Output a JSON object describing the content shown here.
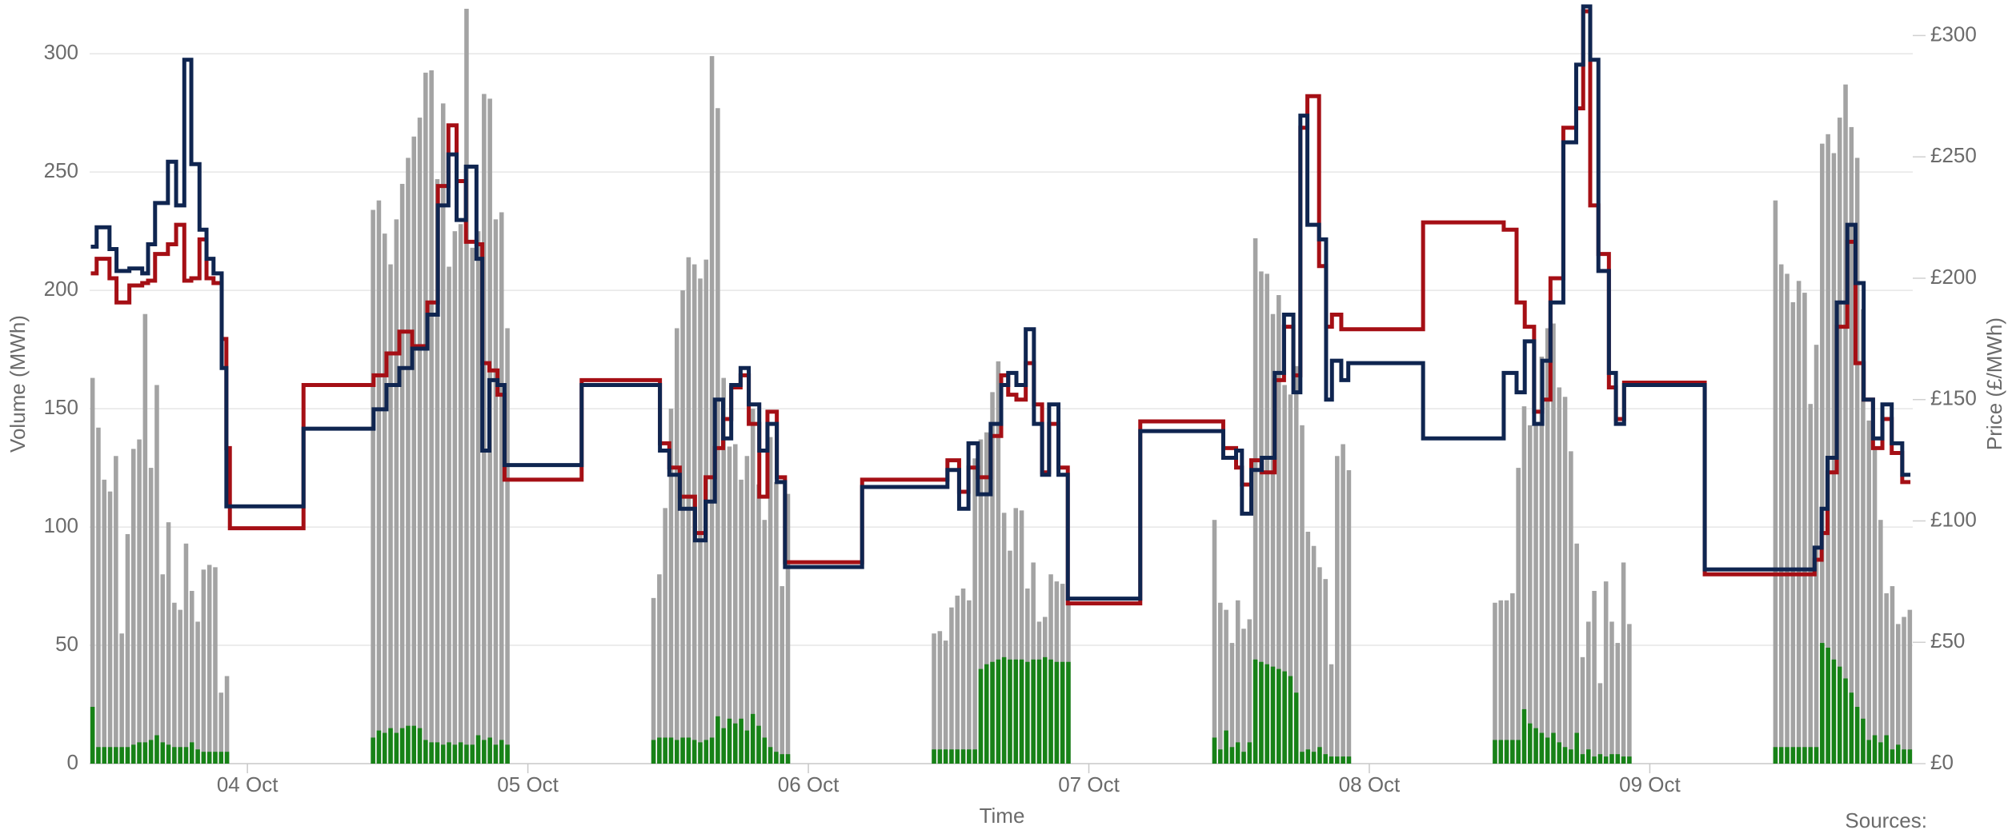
{
  "chart_data": {
    "type": "bar-step",
    "ylabel": "Volume (MWh)",
    "y2label": "Price (£/MWh)",
    "xlabel": "Time",
    "source": "Sources:",
    "ylim": [
      0,
      320
    ],
    "yticks": [
      0,
      50,
      100,
      150,
      200,
      250,
      300
    ],
    "y2lim": [
      0,
      312
    ],
    "y2ticks": [
      {
        "value": 0,
        "label": "£0"
      },
      {
        "value": 50,
        "label": "£50"
      },
      {
        "value": 100,
        "label": "£100"
      },
      {
        "value": 150,
        "label": "£150"
      },
      {
        "value": 200,
        "label": "£200"
      },
      {
        "value": 250,
        "label": "£250"
      },
      {
        "value": 300,
        "label": "£300"
      }
    ],
    "xlim": [
      -13.5,
      142.5
    ],
    "xticks": [
      {
        "value": 0,
        "label": "04 Oct"
      },
      {
        "value": 24,
        "label": "05 Oct"
      },
      {
        "value": 48,
        "label": "06 Oct"
      },
      {
        "value": 72,
        "label": "07 Oct"
      },
      {
        "value": 96,
        "label": "08 Oct"
      },
      {
        "value": 120,
        "label": "09 Oct"
      }
    ],
    "grid": true,
    "x": [
      -13.25,
      -12.75,
      -12.25,
      -11.75,
      -11.25,
      -10.75,
      -10.25,
      -9.75,
      -9.25,
      -8.75,
      -8.25,
      -7.75,
      -7.25,
      -6.75,
      -6.25,
      -5.75,
      -5.25,
      -4.75,
      -4.25,
      -3.75,
      -3.25,
      -2.75,
      -2.25,
      -1.75,
      10.75,
      11.25,
      11.75,
      12.25,
      12.75,
      13.25,
      13.75,
      14.25,
      14.75,
      15.25,
      15.75,
      16.25,
      16.75,
      17.25,
      17.75,
      18.25,
      18.75,
      19.25,
      19.75,
      20.25,
      20.75,
      21.25,
      21.75,
      22.25,
      34.75,
      35.25,
      35.75,
      36.25,
      36.75,
      37.25,
      37.75,
      38.25,
      38.75,
      39.25,
      39.75,
      40.25,
      40.75,
      41.25,
      41.75,
      42.25,
      42.75,
      43.25,
      43.75,
      44.25,
      44.75,
      45.25,
      45.75,
      46.25,
      58.75,
      59.25,
      59.75,
      60.25,
      60.75,
      61.25,
      61.75,
      62.25,
      62.75,
      63.25,
      63.75,
      64.25,
      64.75,
      65.25,
      65.75,
      66.25,
      66.75,
      67.25,
      67.75,
      68.25,
      68.75,
      69.25,
      69.75,
      70.25,
      82.75,
      83.25,
      83.75,
      84.25,
      84.75,
      85.25,
      85.75,
      86.25,
      86.75,
      87.25,
      87.75,
      88.25,
      88.75,
      89.25,
      89.75,
      90.25,
      90.75,
      91.25,
      91.75,
      92.25,
      92.75,
      93.25,
      93.75,
      94.25,
      106.75,
      107.25,
      107.75,
      108.25,
      108.75,
      109.25,
      109.75,
      110.25,
      110.75,
      111.25,
      111.75,
      112.25,
      112.75,
      113.25,
      113.75,
      114.25,
      114.75,
      115.25,
      115.75,
      116.25,
      116.75,
      117.25,
      117.75,
      118.25,
      130.75,
      131.25,
      131.75,
      132.25,
      132.75,
      133.25,
      133.75,
      134.25,
      134.75,
      135.25,
      135.75,
      136.25,
      136.75,
      137.25,
      137.75,
      138.25,
      138.75,
      139.25,
      139.75,
      140.25,
      140.75,
      141.25,
      141.75,
      142.25
    ],
    "series": [
      {
        "type": "bar",
        "color": "#a3a3a3",
        "values": [
          163,
          142,
          120,
          115,
          130,
          55,
          97,
          133,
          137,
          190,
          125,
          160,
          80,
          102,
          68,
          65,
          93,
          73,
          60,
          82,
          84,
          83,
          30,
          37,
          234,
          238,
          224,
          211,
          230,
          245,
          256,
          265,
          273,
          292,
          293,
          247,
          279,
          210,
          225,
          228,
          319,
          218,
          225,
          283,
          281,
          230,
          233,
          184,
          70,
          80,
          108,
          150,
          184,
          200,
          214,
          211,
          205,
          213,
          299,
          277,
          163,
          134,
          135,
          120,
          130,
          150,
          118,
          103,
          138,
          119,
          75,
          114,
          55,
          56,
          52,
          66,
          71,
          74,
          69,
          129,
          137,
          140,
          157,
          170,
          106,
          90,
          108,
          107,
          74,
          85,
          60,
          62,
          80,
          77,
          76,
          68,
          103,
          68,
          65,
          51,
          69,
          57,
          61,
          222,
          208,
          207,
          190,
          198,
          160,
          156,
          168,
          143,
          98,
          92,
          83,
          78,
          42,
          130,
          135,
          124,
          68,
          69,
          69,
          72,
          125,
          151,
          143,
          144,
          172,
          184,
          186,
          159,
          155,
          132,
          93,
          45,
          60,
          73,
          34,
          77,
          60,
          51,
          85,
          59,
          238,
          211,
          207,
          195,
          204,
          199,
          152,
          177,
          262,
          266,
          258,
          273,
          287,
          269,
          256,
          192,
          145,
          133,
          103,
          72,
          75,
          59,
          62,
          65
        ]
      },
      {
        "type": "bar",
        "color": "#178217",
        "values": [
          24,
          7,
          7,
          7,
          7,
          7,
          7,
          8,
          9,
          9,
          10,
          12,
          9,
          8,
          7,
          7,
          7,
          9,
          6,
          5,
          5,
          5,
          5,
          5,
          11,
          14,
          13,
          15,
          13,
          15,
          16,
          16,
          15,
          10,
          9,
          9,
          8,
          9,
          8,
          9,
          8,
          8,
          12,
          10,
          11,
          8,
          10,
          8,
          10,
          11,
          11,
          11,
          10,
          11,
          11,
          10,
          9,
          10,
          11,
          20,
          15,
          19,
          17,
          19,
          14,
          21,
          16,
          11,
          7,
          5,
          4,
          4,
          6,
          6,
          6,
          6,
          6,
          6,
          6,
          6,
          40,
          42,
          43,
          44,
          45,
          44,
          44,
          44,
          43,
          44,
          44,
          45,
          44,
          43,
          43,
          43,
          11,
          6,
          14,
          7,
          9,
          5,
          9,
          44,
          43,
          42,
          41,
          40,
          39,
          37,
          30,
          5,
          6,
          5,
          7,
          4,
          3,
          3,
          3,
          3,
          10,
          10,
          10,
          10,
          10,
          23,
          17,
          15,
          13,
          11,
          13,
          9,
          7,
          6,
          13,
          4,
          6,
          3,
          4,
          3,
          4,
          4,
          3,
          3,
          7,
          7,
          7,
          7,
          7,
          7,
          7,
          7,
          51,
          49,
          44,
          41,
          36,
          30,
          24,
          19,
          10,
          12,
          9,
          12,
          6,
          8,
          6,
          6
        ]
      },
      {
        "type": "step",
        "axis": "y2",
        "color": "#a50f15",
        "x": [
          -13.4,
          -12.9,
          -11.8,
          -11.2,
          -10.1,
          -9.0,
          -8.5,
          -7.9,
          -6.8,
          -6.1,
          -5.4,
          -4.8,
          -4.1,
          -3.5,
          -2.9,
          -2.2,
          -1.8,
          -1.5,
          4.8,
          10.8,
          11.9,
          13.0,
          14.1,
          15.4,
          16.3,
          17.2,
          17.9,
          18.7,
          19.6,
          20.1,
          20.7,
          21.4,
          22.0,
          28.6,
          35.3,
          36.1,
          37.0,
          38.3,
          39.2,
          40.0,
          40.7,
          41.4,
          42.2,
          42.9,
          43.8,
          44.5,
          45.3,
          46.0,
          52.6,
          59.9,
          60.9,
          61.7,
          62.5,
          63.6,
          64.5,
          65.1,
          65.8,
          66.6,
          67.3,
          68.0,
          68.6,
          69.4,
          70.2,
          76.4,
          83.5,
          84.6,
          85.1,
          85.9,
          86.8,
          87.9,
          88.7,
          89.5,
          90.1,
          90.7,
          91.7,
          92.3,
          92.8,
          93.6,
          100.6,
          107.5,
          108.6,
          109.3,
          110.1,
          110.8,
          111.5,
          112.6,
          113.7,
          114.3,
          114.9,
          115.6,
          116.5,
          117.1,
          117.8,
          124.7,
          134.1,
          134.7,
          135.2,
          136.0,
          136.9,
          137.6,
          138.3,
          139.1,
          139.9,
          140.7,
          141.6,
          142.3
        ],
        "values": [
          202,
          208,
          200,
          190,
          197,
          198,
          199,
          210,
          214,
          222,
          199,
          200,
          216,
          200,
          198,
          175,
          130,
          97,
          156,
          160,
          169,
          178,
          172,
          190,
          238,
          263,
          240,
          215,
          214,
          165,
          162,
          152,
          117,
          158,
          132,
          122,
          110,
          95,
          118,
          130,
          142,
          155,
          160,
          140,
          110,
          145,
          118,
          83,
          117,
          125,
          112,
          122,
          118,
          135,
          160,
          152,
          150,
          165,
          148,
          120,
          140,
          122,
          66,
          141,
          130,
          122,
          115,
          125,
          120,
          158,
          180,
          160,
          262,
          275,
          205,
          180,
          185,
          179,
          223,
          220,
          190,
          180,
          145,
          150,
          200,
          262,
          270,
          310,
          230,
          210,
          155,
          142,
          157,
          78,
          84,
          95,
          120,
          180,
          215,
          165,
          150,
          130,
          142,
          128,
          116,
          116
        ]
      },
      {
        "type": "step",
        "axis": "y2",
        "color": "#0f2550",
        "x": [
          -13.4,
          -12.9,
          -11.8,
          -11.2,
          -10.1,
          -9.0,
          -8.5,
          -7.9,
          -6.8,
          -6.1,
          -5.4,
          -4.8,
          -4.1,
          -3.5,
          -2.9,
          -2.2,
          -1.8,
          4.8,
          10.8,
          11.9,
          13.0,
          14.1,
          15.4,
          16.3,
          17.2,
          17.9,
          18.7,
          19.6,
          20.1,
          20.7,
          21.4,
          22.0,
          28.6,
          35.3,
          36.1,
          37.0,
          38.3,
          39.2,
          40.0,
          40.7,
          41.4,
          42.2,
          42.9,
          43.8,
          44.5,
          45.3,
          46.0,
          52.6,
          59.9,
          60.9,
          61.7,
          62.5,
          63.6,
          64.5,
          65.1,
          65.8,
          66.6,
          67.3,
          68.0,
          68.6,
          69.4,
          70.2,
          76.4,
          83.5,
          84.6,
          85.1,
          85.9,
          86.8,
          87.9,
          88.7,
          89.5,
          90.1,
          90.7,
          91.7,
          92.3,
          92.8,
          93.6,
          94.2,
          100.6,
          107.5,
          108.6,
          109.3,
          110.1,
          110.8,
          111.5,
          112.6,
          113.7,
          114.3,
          114.9,
          115.6,
          116.5,
          117.1,
          117.8,
          124.7,
          134.1,
          134.7,
          135.2,
          136.0,
          136.9,
          137.6,
          138.3,
          139.1,
          139.9,
          140.7,
          141.6,
          142.3
        ],
        "values": [
          213,
          221,
          212,
          203,
          204,
          202,
          214,
          231,
          248,
          230,
          290,
          247,
          220,
          208,
          202,
          163,
          106,
          138,
          146,
          156,
          163,
          171,
          185,
          230,
          251,
          224,
          246,
          208,
          129,
          158,
          156,
          123,
          156,
          129,
          119,
          105,
          92,
          108,
          150,
          134,
          156,
          163,
          148,
          129,
          140,
          116,
          81,
          114,
          121,
          105,
          132,
          111,
          140,
          156,
          161,
          156,
          179,
          140,
          119,
          148,
          119,
          68,
          137,
          126,
          129,
          103,
          121,
          126,
          161,
          185,
          153,
          267,
          222,
          216,
          150,
          166,
          158,
          165,
          134,
          161,
          153,
          174,
          140,
          166,
          190,
          256,
          288,
          312,
          290,
          203,
          161,
          140,
          156,
          80,
          89,
          105,
          126,
          190,
          222,
          198,
          150,
          134,
          148,
          132,
          119,
          119
        ]
      }
    ]
  }
}
